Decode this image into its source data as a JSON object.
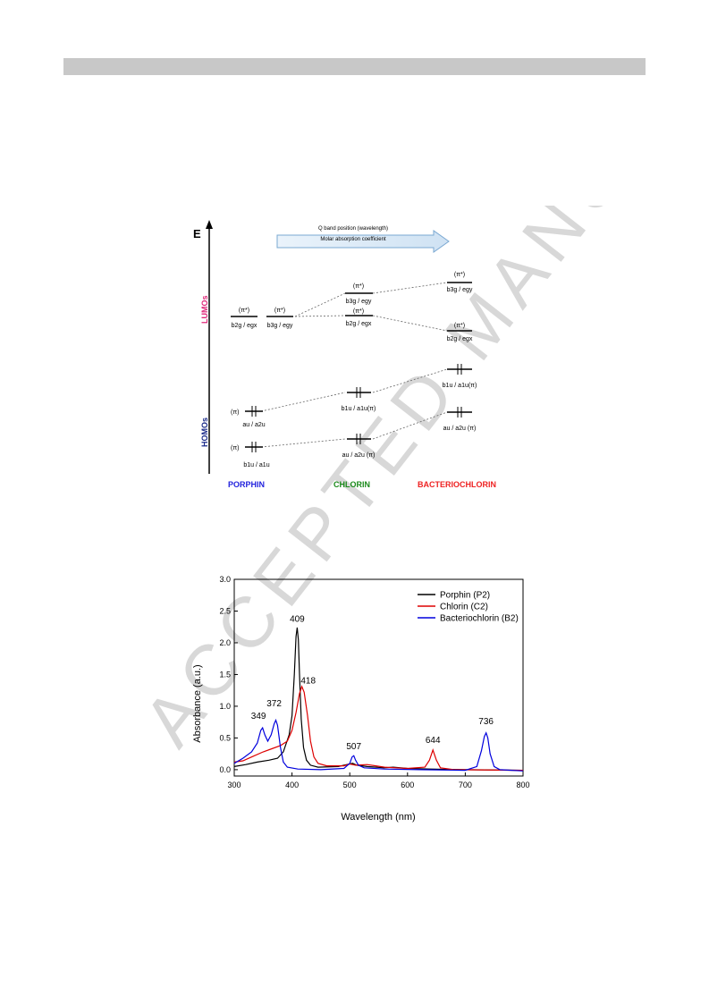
{
  "watermark": {
    "text": "ACCEPTED MANUSCRIPT"
  },
  "diagram": {
    "energy_label": "E",
    "arrow_line1": "Q band position (wavelength)",
    "arrow_line2": "Molar absorption coefficient",
    "lumos_label": "LUMOs",
    "homos_label": "HOMOs",
    "pi_star": "(π*)",
    "pi": "(π)",
    "porphin": {
      "name": "PORPHIN",
      "lumo1": "b2g / egx",
      "lumo2": "b3g / egy",
      "homo1": "au / a2u",
      "homo2": "b1u / a1u"
    },
    "chlorin": {
      "name": "CHLORIN",
      "lumo_top": "b3g / egy",
      "lumo_bottom": "b2g / egx",
      "homo_top": "b1u / a1u(π)",
      "homo_bottom": "au / a2u (π)"
    },
    "bacteriochlorin": {
      "name": "BACTERIOCHLORIN",
      "lumo_top": "b3g / egy",
      "lumo_bottom": "b2g / egx",
      "homo_top": "b1u / a1u(π)",
      "homo_bottom": "au / a2u (π)"
    },
    "colors": {
      "porphin": "#2222dd",
      "chlorin": "#1a8a1a",
      "bacteriochlorin": "#ee2222",
      "lumos": "#e0287a",
      "homos": "#1a2a8a"
    }
  },
  "chart_data": {
    "type": "line",
    "xlabel": "Wavelength (nm)",
    "ylabel": "Absorbance (a.u.)",
    "xlim": [
      300,
      800
    ],
    "ylim": [
      -0.1,
      3.0
    ],
    "xticks": [
      300,
      400,
      500,
      600,
      700,
      800
    ],
    "yticks": [
      0.0,
      0.5,
      1.0,
      1.5,
      2.0,
      2.5,
      3.0
    ],
    "ytick_labels": [
      "0.0",
      "0.5",
      "1.0",
      "1.5",
      "2.0",
      "2.5",
      "3.0"
    ],
    "legend_position": "top-right",
    "series": [
      {
        "name": "Porphin (P2)",
        "color": "#000000",
        "points": [
          [
            300,
            0.05
          ],
          [
            320,
            0.08
          ],
          [
            340,
            0.12
          ],
          [
            360,
            0.15
          ],
          [
            375,
            0.18
          ],
          [
            385,
            0.28
          ],
          [
            395,
            0.55
          ],
          [
            400,
            0.85
          ],
          [
            404,
            1.5
          ],
          [
            407,
            2.1
          ],
          [
            409,
            2.24
          ],
          [
            411,
            2.05
          ],
          [
            413,
            1.5
          ],
          [
            416,
            0.8
          ],
          [
            420,
            0.35
          ],
          [
            425,
            0.15
          ],
          [
            432,
            0.07
          ],
          [
            445,
            0.04
          ],
          [
            480,
            0.05
          ],
          [
            500,
            0.09
          ],
          [
            505,
            0.1
          ],
          [
            512,
            0.07
          ],
          [
            530,
            0.05
          ],
          [
            560,
            0.03
          ],
          [
            575,
            0.04
          ],
          [
            600,
            0.02
          ],
          [
            640,
            0.01
          ],
          [
            700,
            0.0
          ],
          [
            800,
            -0.01
          ]
        ]
      },
      {
        "name": "Chlorin (C2)",
        "color": "#dd0000",
        "points": [
          [
            300,
            0.12
          ],
          [
            315,
            0.14
          ],
          [
            330,
            0.2
          ],
          [
            350,
            0.28
          ],
          [
            365,
            0.33
          ],
          [
            380,
            0.38
          ],
          [
            392,
            0.45
          ],
          [
            400,
            0.62
          ],
          [
            407,
            0.9
          ],
          [
            413,
            1.2
          ],
          [
            417,
            1.31
          ],
          [
            421,
            1.22
          ],
          [
            427,
            0.85
          ],
          [
            432,
            0.45
          ],
          [
            438,
            0.2
          ],
          [
            445,
            0.1
          ],
          [
            460,
            0.06
          ],
          [
            490,
            0.06
          ],
          [
            500,
            0.09
          ],
          [
            510,
            0.07
          ],
          [
            530,
            0.08
          ],
          [
            545,
            0.06
          ],
          [
            560,
            0.04
          ],
          [
            580,
            0.03
          ],
          [
            600,
            0.02
          ],
          [
            630,
            0.04
          ],
          [
            638,
            0.15
          ],
          [
            644,
            0.31
          ],
          [
            650,
            0.15
          ],
          [
            657,
            0.03
          ],
          [
            680,
            0.0
          ],
          [
            800,
            -0.01
          ]
        ]
      },
      {
        "name": "Bacteriochlorin (B2)",
        "color": "#0000dd",
        "points": [
          [
            300,
            0.1
          ],
          [
            315,
            0.18
          ],
          [
            330,
            0.28
          ],
          [
            340,
            0.42
          ],
          [
            346,
            0.62
          ],
          [
            349,
            0.66
          ],
          [
            353,
            0.55
          ],
          [
            358,
            0.45
          ],
          [
            364,
            0.55
          ],
          [
            369,
            0.72
          ],
          [
            372,
            0.78
          ],
          [
            375,
            0.7
          ],
          [
            380,
            0.35
          ],
          [
            385,
            0.12
          ],
          [
            392,
            0.04
          ],
          [
            410,
            0.01
          ],
          [
            450,
            0.0
          ],
          [
            490,
            0.02
          ],
          [
            500,
            0.1
          ],
          [
            504,
            0.2
          ],
          [
            507,
            0.22
          ],
          [
            510,
            0.15
          ],
          [
            515,
            0.07
          ],
          [
            525,
            0.03
          ],
          [
            560,
            0.01
          ],
          [
            620,
            0.0
          ],
          [
            700,
            -0.01
          ],
          [
            720,
            0.05
          ],
          [
            728,
            0.3
          ],
          [
            733,
            0.52
          ],
          [
            736,
            0.58
          ],
          [
            739,
            0.5
          ],
          [
            743,
            0.25
          ],
          [
            750,
            0.05
          ],
          [
            760,
            0.0
          ],
          [
            800,
            -0.02
          ]
        ]
      }
    ],
    "annotations": [
      "409",
      "418",
      "372",
      "349",
      "507",
      "644",
      "736"
    ]
  }
}
